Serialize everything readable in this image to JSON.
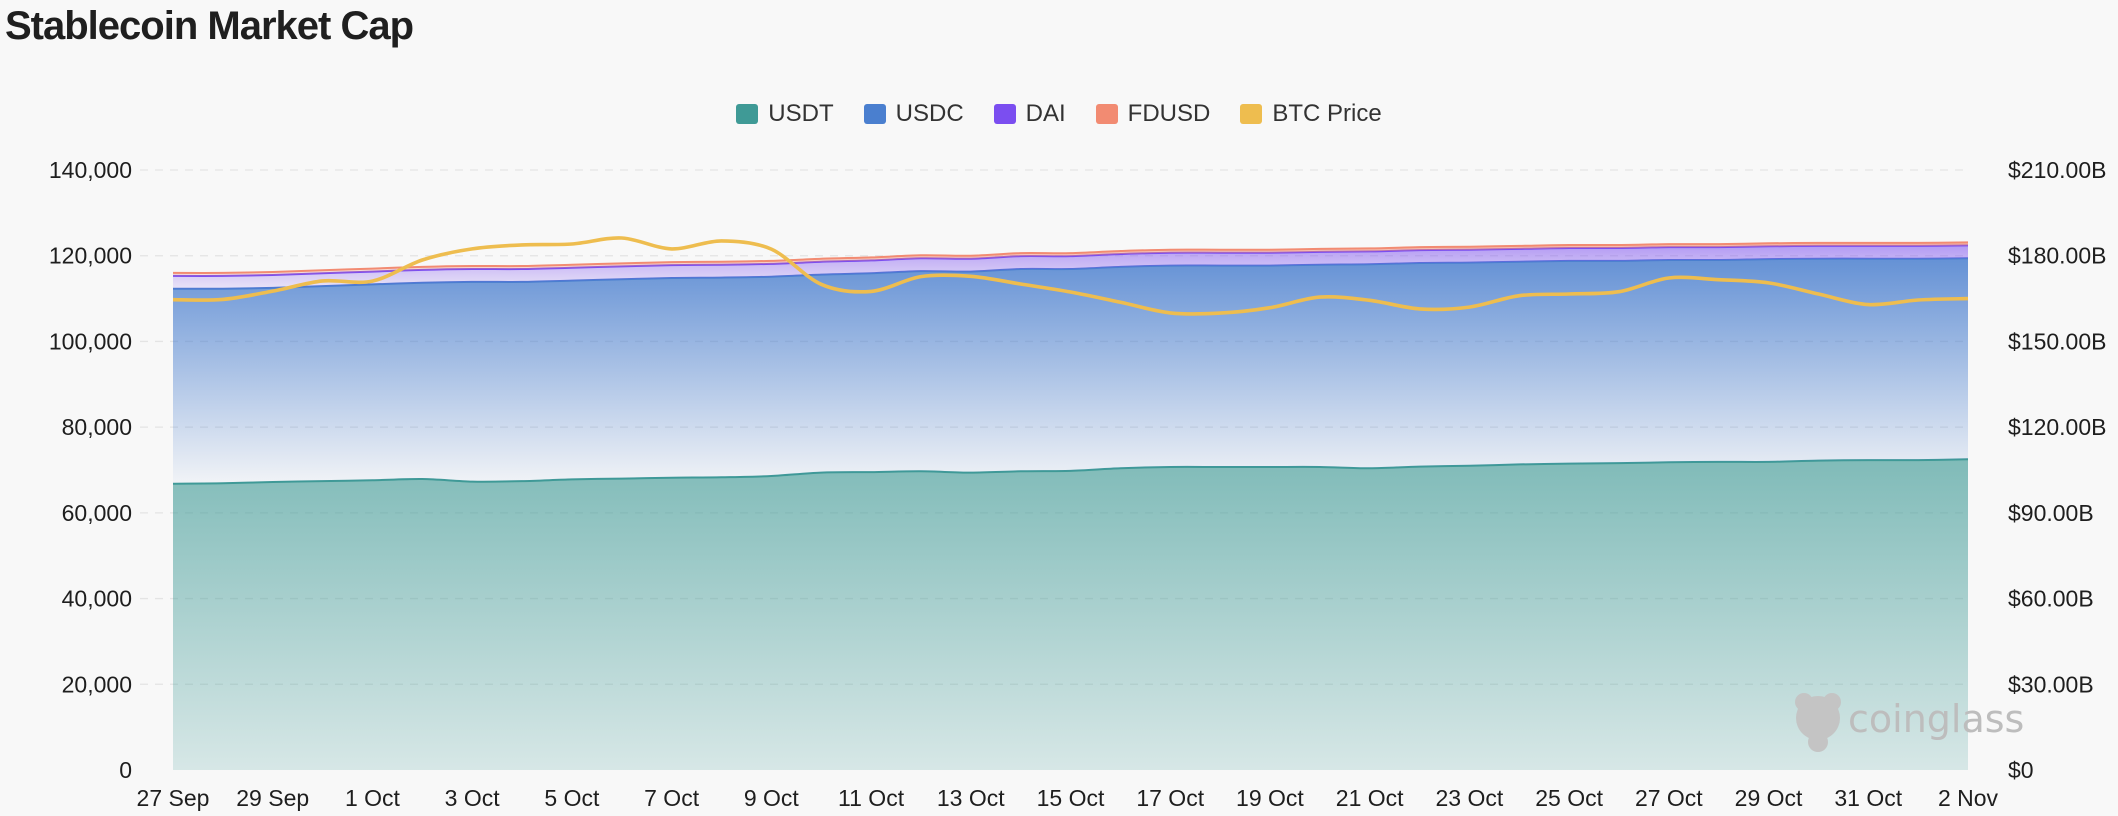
{
  "title": "Stablecoin Market Cap",
  "watermark": "coinglass",
  "chart_data": {
    "type": "area",
    "title": "Stablecoin Market Cap",
    "legend_position": "top-center",
    "grid": true,
    "x": [
      "27 Sep",
      "28 Sep",
      "29 Sep",
      "30 Sep",
      "1 Oct",
      "2 Oct",
      "3 Oct",
      "4 Oct",
      "5 Oct",
      "6 Oct",
      "7 Oct",
      "8 Oct",
      "9 Oct",
      "10 Oct",
      "11 Oct",
      "12 Oct",
      "13 Oct",
      "14 Oct",
      "15 Oct",
      "16 Oct",
      "17 Oct",
      "18 Oct",
      "19 Oct",
      "20 Oct",
      "21 Oct",
      "22 Oct",
      "23 Oct",
      "24 Oct",
      "25 Oct",
      "26 Oct",
      "27 Oct",
      "28 Oct",
      "29 Oct",
      "30 Oct",
      "31 Oct",
      "1 Nov",
      "2 Nov"
    ],
    "x_ticks": [
      "27 Sep",
      "29 Sep",
      "1 Oct",
      "3 Oct",
      "5 Oct",
      "7 Oct",
      "9 Oct",
      "11 Oct",
      "13 Oct",
      "15 Oct",
      "17 Oct",
      "19 Oct",
      "21 Oct",
      "23 Oct",
      "25 Oct",
      "27 Oct",
      "29 Oct",
      "31 Oct",
      "2 Nov"
    ],
    "y_left": {
      "min": 0,
      "max": 140000,
      "ticks": [
        "0",
        "20,000",
        "40,000",
        "60,000",
        "80,000",
        "100,000",
        "120,000",
        "140,000"
      ]
    },
    "y_right": {
      "min": 0,
      "max": 210,
      "unit": "B",
      "ticks": [
        "$0",
        "$30.00B",
        "$60.00B",
        "$90.00B",
        "$120.00B",
        "$150.00B",
        "$180.00B",
        "$210.00B"
      ]
    },
    "series": [
      {
        "name": "USDT",
        "color": "#3f9a96",
        "axis": "left",
        "stacked": true,
        "values": [
          66800,
          66900,
          67200,
          67400,
          67600,
          67900,
          67300,
          67400,
          67800,
          68000,
          68200,
          68300,
          68600,
          69400,
          69500,
          69700,
          69400,
          69700,
          69800,
          70400,
          70700,
          70700,
          70700,
          70700,
          70400,
          70800,
          71000,
          71300,
          71500,
          71600,
          71800,
          71900,
          71900,
          72200,
          72300,
          72300,
          72500
        ]
      },
      {
        "name": "USDC",
        "color": "#4a7fcf",
        "axis": "left",
        "stacked": true,
        "values": [
          45500,
          45400,
          45300,
          45500,
          45700,
          45800,
          46600,
          46500,
          46400,
          46500,
          46600,
          46600,
          46500,
          46200,
          46400,
          46700,
          46900,
          47200,
          47100,
          47000,
          47000,
          47000,
          47000,
          47200,
          47600,
          47500,
          47400,
          47300,
          47300,
          47200,
          47200,
          47100,
          47300,
          47100,
          47000,
          47000,
          46900
        ]
      },
      {
        "name": "DAI",
        "color": "#7b4ef0",
        "axis": "left",
        "stacked": true,
        "values": [
          3000,
          3000,
          3000,
          3000,
          3000,
          3000,
          3000,
          3000,
          3000,
          3000,
          3000,
          3000,
          3000,
          3000,
          3000,
          3000,
          3000,
          3000,
          3000,
          3000,
          3000,
          3000,
          3000,
          3000,
          3000,
          3000,
          3000,
          3000,
          3000,
          3000,
          3000,
          3000,
          3000,
          3000,
          3000,
          3000,
          3000
        ]
      },
      {
        "name": "FDUSD",
        "color": "#f28b72",
        "axis": "left",
        "stacked": true,
        "values": [
          700,
          700,
          700,
          700,
          700,
          700,
          700,
          700,
          700,
          700,
          700,
          700,
          700,
          700,
          700,
          700,
          700,
          700,
          700,
          700,
          700,
          700,
          700,
          700,
          700,
          700,
          700,
          700,
          700,
          700,
          700,
          700,
          700,
          700,
          700,
          700,
          700
        ]
      },
      {
        "name": "BTC Price",
        "color": "#eebd4f",
        "axis": "right",
        "type": "line",
        "values": [
          164.6,
          164.7,
          167.6,
          171.2,
          171.1,
          178.5,
          182.4,
          183.8,
          184.1,
          186.2,
          182.4,
          185.2,
          182.3,
          170.0,
          167.5,
          172.7,
          172.8,
          170.1,
          167.3,
          163.7,
          160.0,
          159.9,
          161.8,
          165.5,
          164.4,
          161.4,
          162.0,
          166.0,
          166.6,
          167.4,
          172.2,
          171.6,
          170.5,
          166.6,
          162.9,
          164.5,
          165.0
        ]
      }
    ]
  }
}
